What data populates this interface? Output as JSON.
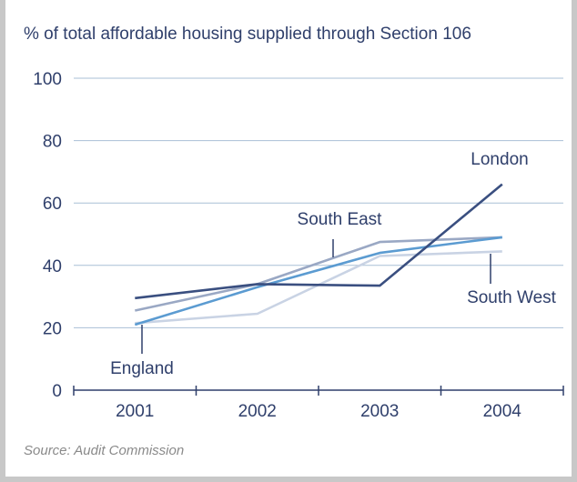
{
  "chart_data": {
    "type": "line",
    "title": "% of total affordable housing supplied through Section 106",
    "categories": [
      "2001",
      "2002",
      "2003",
      "2004"
    ],
    "ylim": [
      0,
      100
    ],
    "yticks": [
      "0",
      "20",
      "40",
      "60",
      "80",
      "100"
    ],
    "grid": true,
    "series": [
      {
        "name": "London",
        "values": [
          29.5,
          34,
          33.5,
          66
        ],
        "color": "#3a4f80"
      },
      {
        "name": "South East",
        "values": [
          25.5,
          34,
          47.5,
          49
        ],
        "color": "#9aa8c4"
      },
      {
        "name": "England",
        "values": [
          21,
          33,
          44,
          49
        ],
        "color": "#5b9bd1"
      },
      {
        "name": "South West",
        "values": [
          21.5,
          24.5,
          43,
          44.5
        ],
        "color": "#c9d3e4"
      }
    ],
    "source": "Source: Audit Commission",
    "colors": {
      "axis": "#2f3f6b",
      "grid": "#a9bfd6",
      "text": "#2f3f6b",
      "source": "#8a8a8a"
    }
  }
}
